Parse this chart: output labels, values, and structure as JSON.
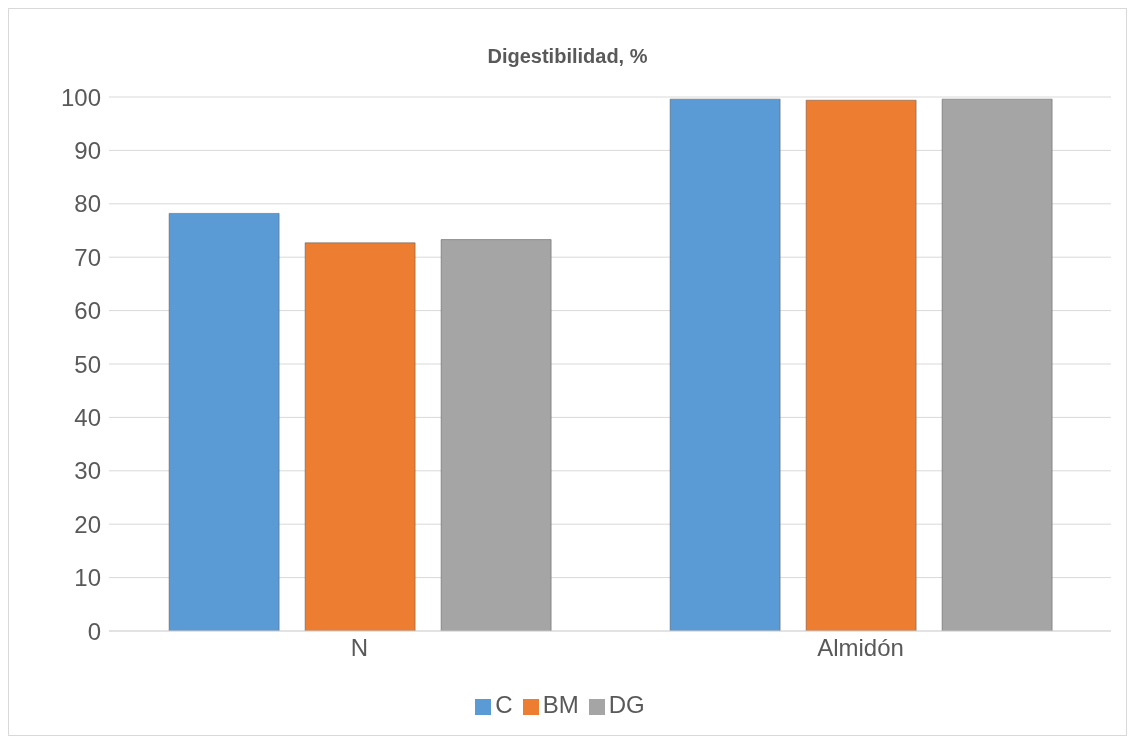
{
  "chart_data": {
    "type": "bar",
    "title": "Digestibilidad, %",
    "categories": [
      "N",
      "Almidón"
    ],
    "series": [
      {
        "name": "C",
        "color": "#5b9bd5",
        "values": [
          78.2,
          99.6
        ]
      },
      {
        "name": "BM",
        "color": "#ed7d31",
        "values": [
          72.7,
          99.4
        ]
      },
      {
        "name": "DG",
        "color": "#a5a5a5",
        "values": [
          73.3,
          99.6
        ]
      }
    ],
    "ylim": [
      0,
      100
    ],
    "yticks": [
      0,
      10,
      20,
      30,
      40,
      50,
      60,
      70,
      80,
      90,
      100
    ],
    "grid": "y",
    "legend": "bottom"
  }
}
